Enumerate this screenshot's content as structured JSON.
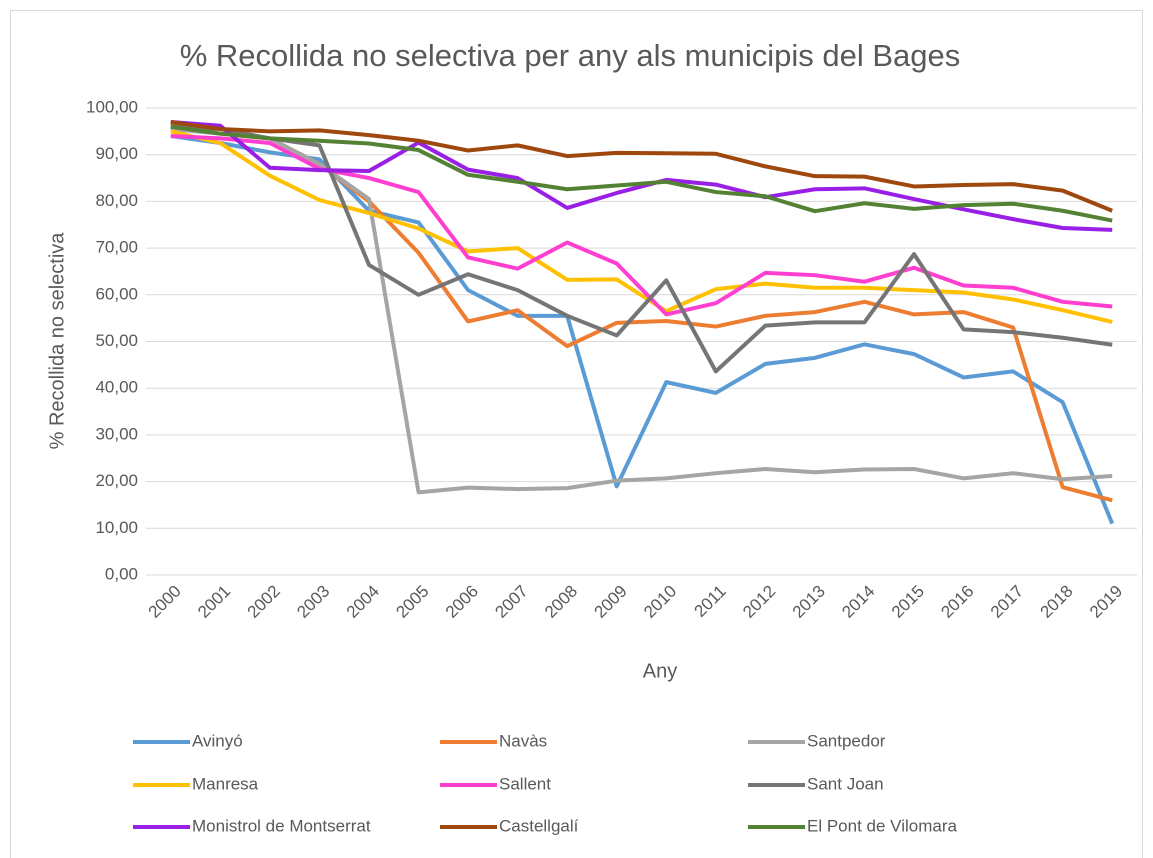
{
  "chart_data": {
    "type": "line",
    "title": "% Recollida no selectiva per any als municipis del Bages",
    "x_label": "Any",
    "y_label": "% Recollida no selectiva",
    "categories": [
      "2000",
      "2001",
      "2002",
      "2003",
      "2004",
      "2005",
      "2006",
      "2007",
      "2008",
      "2009",
      "2010",
      "2011",
      "2012",
      "2013",
      "2014",
      "2015",
      "2016",
      "2017",
      "2018",
      "2019"
    ],
    "ylim": [
      0,
      100
    ],
    "yticks": [
      {
        "value": 0,
        "label": "0,00"
      },
      {
        "value": 10,
        "label": "10,00"
      },
      {
        "value": 20,
        "label": "20,00"
      },
      {
        "value": 30,
        "label": "30,00"
      },
      {
        "value": 40,
        "label": "40,00"
      },
      {
        "value": 50,
        "label": "50,00"
      },
      {
        "value": 60,
        "label": "60,00"
      },
      {
        "value": 70,
        "label": "70,00"
      },
      {
        "value": 80,
        "label": "80,00"
      },
      {
        "value": 90,
        "label": "90,00"
      },
      {
        "value": 100,
        "label": "100,00"
      }
    ],
    "grid": true,
    "legend": "bottom",
    "series": [
      {
        "name": "Avinyó",
        "color": "#5b9bd5",
        "values": [
          94,
          92.5,
          90.5,
          89,
          78,
          75.5,
          61,
          55.5,
          55.5,
          19,
          41.3,
          39,
          45.2,
          46.5,
          49.4,
          47.3,
          42.3,
          43.6,
          37,
          11
        ]
      },
      {
        "name": "Navàs",
        "color": "#ed7d31",
        "values": [
          96.5,
          94.5,
          93.5,
          88,
          80,
          69,
          54.3,
          56.7,
          49,
          54,
          54.4,
          53.2,
          55.5,
          56.3,
          58.5,
          55.8,
          56.3,
          53,
          18.8,
          16
        ]
      },
      {
        "name": "Santpedor",
        "color": "#a5a5a5",
        "values": [
          95.5,
          94.5,
          93.5,
          88,
          80.5,
          17.7,
          18.7,
          18.4,
          18.6,
          20.2,
          20.7,
          21.8,
          22.7,
          22,
          22.6,
          22.7,
          20.7,
          21.8,
          20.5,
          21.2
        ]
      },
      {
        "name": "Manresa",
        "color": "#ffc000",
        "values": [
          95,
          92.5,
          85.5,
          80.3,
          77.5,
          74.2,
          69.3,
          70,
          63.2,
          63.3,
          56.5,
          61.2,
          62.4,
          61.5,
          61.5,
          61,
          60.5,
          59,
          56.7,
          54.2
        ]
      },
      {
        "name": "Sallent",
        "color": "#ff3fcf",
        "values": [
          94,
          93.5,
          92.5,
          87,
          85,
          82,
          68,
          65.6,
          71.2,
          66.7,
          55.8,
          58.2,
          64.7,
          64.2,
          62.8,
          65.8,
          62,
          61.5,
          58.5,
          57.5
        ]
      },
      {
        "name": "Sant Joan",
        "color": "#757575",
        "values": [
          96,
          95.5,
          93.5,
          92,
          66.4,
          60,
          64.4,
          61,
          55.5,
          51.3,
          63.1,
          43.6,
          53.4,
          54.1,
          54.1,
          68.7,
          52.6,
          52,
          50.8,
          49.3
        ]
      },
      {
        "name": "Monistrol de Montserrat",
        "color": "#9a1fe6",
        "values": [
          97,
          96.2,
          87.2,
          86.7,
          86.5,
          92.6,
          86.8,
          85,
          78.6,
          81.8,
          84.6,
          83.6,
          80.9,
          82.6,
          82.8,
          80.5,
          78.3,
          76.2,
          74.3,
          73.9
        ]
      },
      {
        "name": "Castellgalí",
        "color": "#9e480e",
        "values": [
          97,
          95.5,
          95,
          95.2,
          94.2,
          93,
          90.9,
          92,
          89.7,
          90.4,
          90.3,
          90.2,
          87.5,
          85.4,
          85.3,
          83.2,
          83.5,
          83.7,
          82.3,
          78
        ]
      },
      {
        "name": "El Pont de Vilomara",
        "color": "#548235",
        "values": [
          96,
          94.5,
          93.5,
          93,
          92.4,
          91,
          85.7,
          84.2,
          82.6,
          83.4,
          84.2,
          82,
          81.1,
          77.9,
          79.6,
          78.4,
          79.2,
          79.5,
          78,
          75.9
        ]
      }
    ]
  }
}
